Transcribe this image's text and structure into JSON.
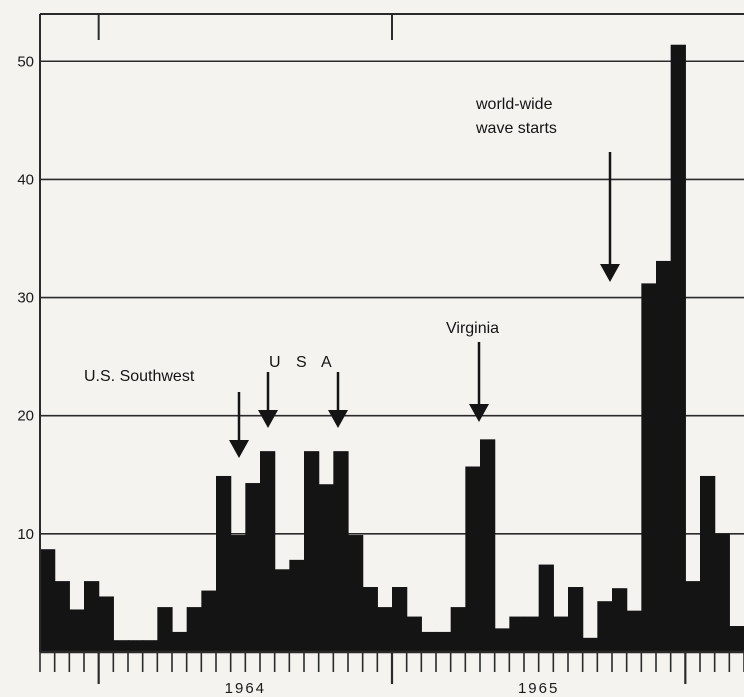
{
  "chart_data": {
    "type": "bar",
    "title": "",
    "xlabel": "",
    "ylabel": "",
    "ylim": [
      0,
      54
    ],
    "yticks": [
      10,
      20,
      30,
      40,
      50
    ],
    "x_year_labels": [
      "1964",
      "1965"
    ],
    "grid": "horizontal",
    "values": [
      8.7,
      6,
      3.6,
      6,
      4.7,
      1,
      1,
      1,
      3.8,
      1.7,
      3.8,
      5.2,
      14.9,
      9.9,
      14.3,
      17,
      7,
      7.8,
      17,
      14.2,
      17,
      9.9,
      5.5,
      3.8,
      5.5,
      3,
      1.7,
      1.7,
      3.8,
      15.7,
      18,
      2,
      3,
      3,
      7.4,
      3,
      5.5,
      1.2,
      4.3,
      5.4,
      3.5,
      31.2,
      33.1,
      51.4,
      6,
      14.9,
      10,
      2.2
    ],
    "annotations": [
      {
        "id": "us-southwest",
        "text": "U.S. Southwest"
      },
      {
        "id": "usa-u",
        "text": "U"
      },
      {
        "id": "usa-s",
        "text": "S"
      },
      {
        "id": "usa-a",
        "text": "A"
      },
      {
        "id": "virginia",
        "text": "Virginia"
      },
      {
        "id": "world-wide-1",
        "text": "world-wide"
      },
      {
        "id": "world-wide-2",
        "text": "wave starts"
      }
    ],
    "colors": {
      "bar": "#141414",
      "grid": "#2a2a2a",
      "background": "#f4f3ef"
    }
  }
}
